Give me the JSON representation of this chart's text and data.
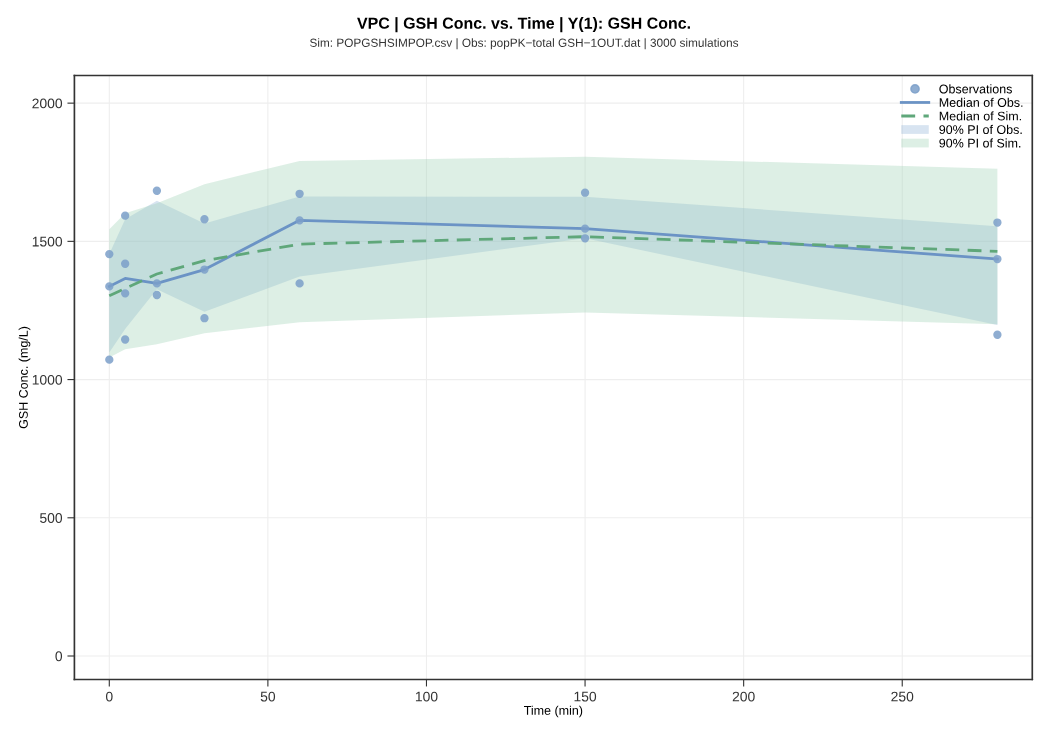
{
  "chart_data": {
    "type": "line",
    "title": "VPC | GSH Conc. vs. Time | Y(1): GSH Conc.",
    "subtitle": "Sim: POPGSHSIMPOP.csv | Obs: popPK−total GSH−1OUT.dat | 3000 simulations",
    "xlabel": "Time (min)",
    "ylabel": "GSH Conc. (mg/L)",
    "xlim": [
      -11,
      291
    ],
    "ylim": [
      -85,
      2100
    ],
    "xticks": [
      0,
      50,
      100,
      150,
      200,
      250
    ],
    "yticks": [
      0,
      500,
      1000,
      1500,
      2000
    ],
    "grid": true,
    "legend": "top right",
    "series": [
      {
        "name": "Observations",
        "type": "scatter",
        "marker": "circle",
        "color": "#7b9fc9",
        "x": [
          0,
          0,
          0,
          5,
          5,
          5,
          5,
          15,
          15,
          15,
          30,
          30,
          30,
          60,
          60,
          60,
          150,
          150,
          150,
          280,
          280,
          280
        ],
        "values": [
          1454,
          1337,
          1072,
          1593,
          1419,
          1312,
          1145,
          1683,
          1348,
          1306,
          1580,
          1398,
          1222,
          1672,
          1576,
          1348,
          1676,
          1546,
          1511,
          1568,
          1436,
          1162
        ]
      },
      {
        "name": "Median of Obs.",
        "line_style": "solid",
        "color": "#6b93c5",
        "x": [
          0,
          5,
          15,
          30,
          60,
          150,
          280
        ],
        "values": [
          1337,
          1366,
          1348,
          1398,
          1576,
          1546,
          1436
        ]
      },
      {
        "name": "Median of Sim.",
        "line_style": "dashed",
        "color": "#5fa77a",
        "x": [
          0,
          5,
          15,
          30,
          60,
          150,
          280
        ],
        "values": [
          1303,
          1330,
          1382,
          1430,
          1490,
          1517,
          1464
        ]
      },
      {
        "name": "90% PI of Obs.",
        "color": "#8fb3d6",
        "x": [
          0,
          5,
          15,
          30,
          60,
          150,
          280
        ],
        "values": [
          null,
          null,
          null,
          null,
          null,
          null,
          null
        ],
        "lower": [
          1098,
          1183,
          1327,
          1245,
          1373,
          1511,
          1197
        ],
        "upper": [
          1454,
          1580,
          1647,
          1565,
          1662,
          1661,
          1555
        ]
      },
      {
        "name": "90% PI of Sim.",
        "color": "#9fd2b4",
        "x": [
          0,
          5,
          15,
          30,
          60,
          150,
          280
        ],
        "values": [
          null,
          null,
          null,
          null,
          null,
          null,
          null
        ],
        "lower": [
          1080,
          1110,
          1128,
          1168,
          1207,
          1243,
          1200
        ],
        "upper": [
          1544,
          1602,
          1638,
          1707,
          1791,
          1806,
          1763
        ]
      }
    ]
  }
}
